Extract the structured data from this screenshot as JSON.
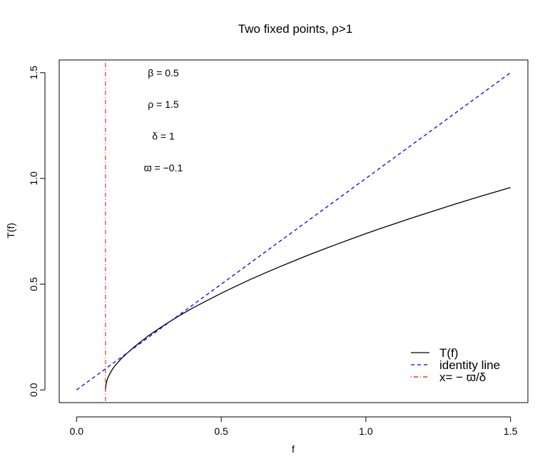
{
  "chart_data": {
    "type": "line",
    "title": "Two fixed points, ρ>1",
    "xlabel": "f",
    "ylabel": "T(f)",
    "xlim": [
      -0.06,
      1.56
    ],
    "ylim": [
      -0.06,
      1.56
    ],
    "x_ticks": [
      0.0,
      0.5,
      1.0,
      1.5
    ],
    "x_tick_labels": [
      "0.0",
      "0.5",
      "1.0",
      "1.5"
    ],
    "y_ticks": [
      0.0,
      0.5,
      1.0,
      1.5
    ],
    "y_tick_labels": [
      "0.0",
      "0.5",
      "1.0",
      "1.5"
    ],
    "grid": false,
    "annotations": [
      {
        "text": "β = 0.5",
        "x": 0.3,
        "y": 1.5
      },
      {
        "text": "ρ = 1.5",
        "x": 0.3,
        "y": 1.35
      },
      {
        "text": "δ = 1",
        "x": 0.3,
        "y": 1.2
      },
      {
        "text": "ϖ = −0.1",
        "x": 0.3,
        "y": 1.05
      }
    ],
    "legend": {
      "position": "bottom-right",
      "entries": [
        "T(f)",
        "identity line",
        "x= − ϖ/δ"
      ]
    },
    "series": [
      {
        "name": "T(f)",
        "color": "#000000",
        "style": "solid",
        "x": [
          0.1,
          0.101,
          0.105,
          0.11,
          0.12,
          0.13,
          0.15,
          0.17,
          0.2,
          0.25,
          0.3,
          0.35,
          0.4,
          0.45,
          0.5,
          0.55,
          0.6,
          0.65,
          0.7,
          0.75,
          0.8,
          0.85,
          0.9,
          0.95,
          1.0,
          1.05,
          1.1,
          1.15,
          1.2,
          1.25,
          1.3,
          1.35,
          1.4,
          1.45,
          1.5
        ],
        "y": [
          0.0,
          0.02,
          0.045,
          0.063,
          0.089,
          0.11,
          0.141,
          0.168,
          0.204,
          0.258,
          0.304,
          0.347,
          0.386,
          0.422,
          0.457,
          0.49,
          0.522,
          0.552,
          0.581,
          0.609,
          0.637,
          0.663,
          0.689,
          0.714,
          0.739,
          0.763,
          0.786,
          0.809,
          0.831,
          0.853,
          0.875,
          0.896,
          0.917,
          0.937,
          0.957
        ]
      },
      {
        "name": "identity line",
        "color": "#0000ff",
        "style": "dashed",
        "x": [
          0.0,
          1.5
        ],
        "y": [
          0.0,
          1.5
        ]
      },
      {
        "name": "x= − ϖ/δ",
        "color": "#ff0000",
        "style": "dotdash",
        "vertical_line_x": 0.1
      }
    ]
  }
}
